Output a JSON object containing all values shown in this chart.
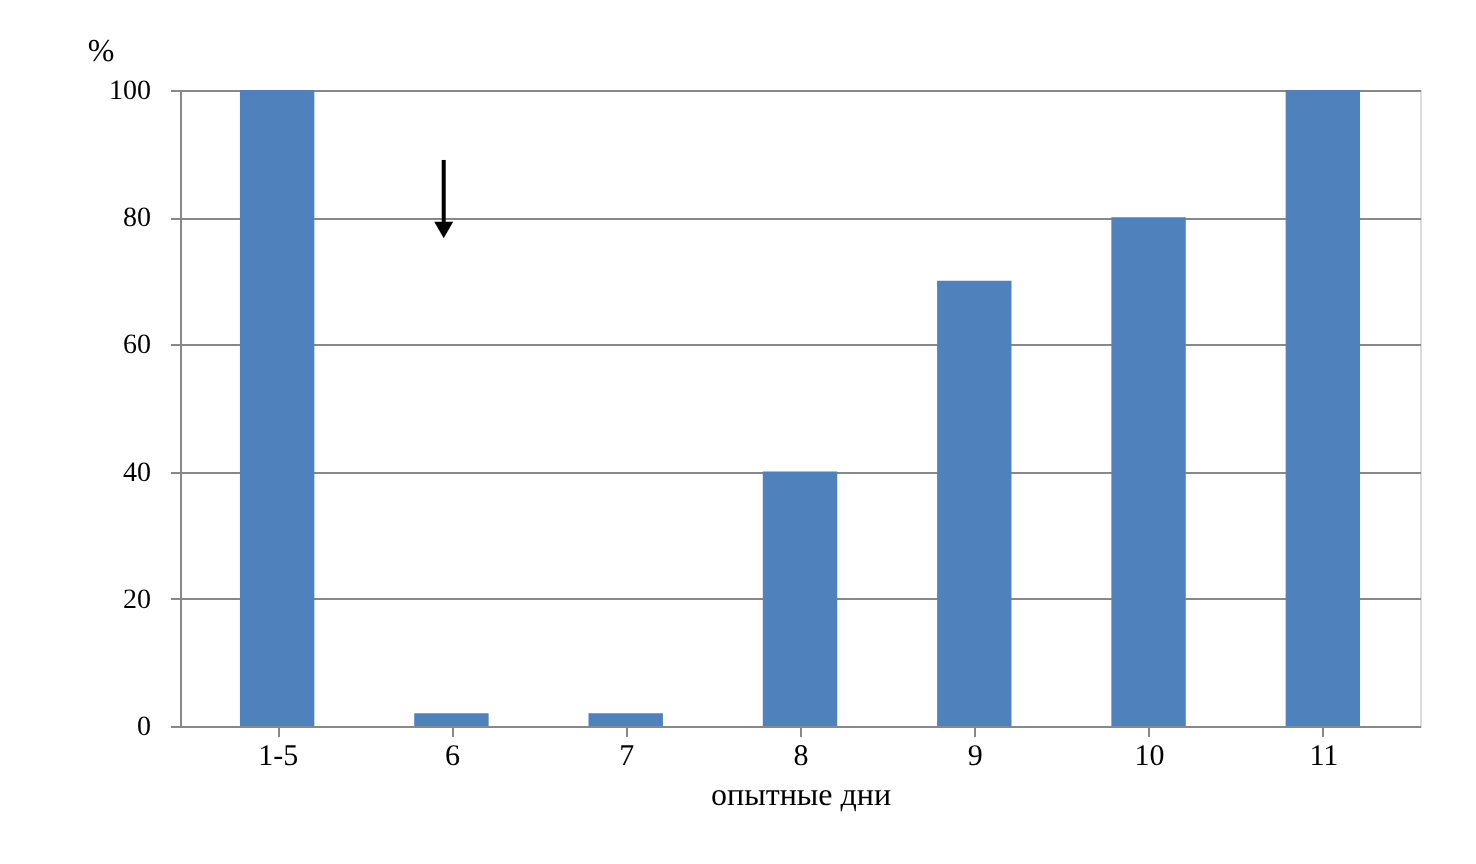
{
  "chart_data": {
    "type": "bar",
    "xlabel": "опытные дни",
    "ylabel": "%",
    "categories": [
      "1-5",
      "6",
      "7",
      "8",
      "9",
      "10",
      "11"
    ],
    "values": [
      100,
      2,
      2,
      40,
      70,
      80,
      100
    ],
    "color": "#4f81bd",
    "ylim": [
      0,
      100
    ],
    "yticks": [
      0,
      20,
      40,
      60,
      80,
      100
    ],
    "grid": "y"
  }
}
